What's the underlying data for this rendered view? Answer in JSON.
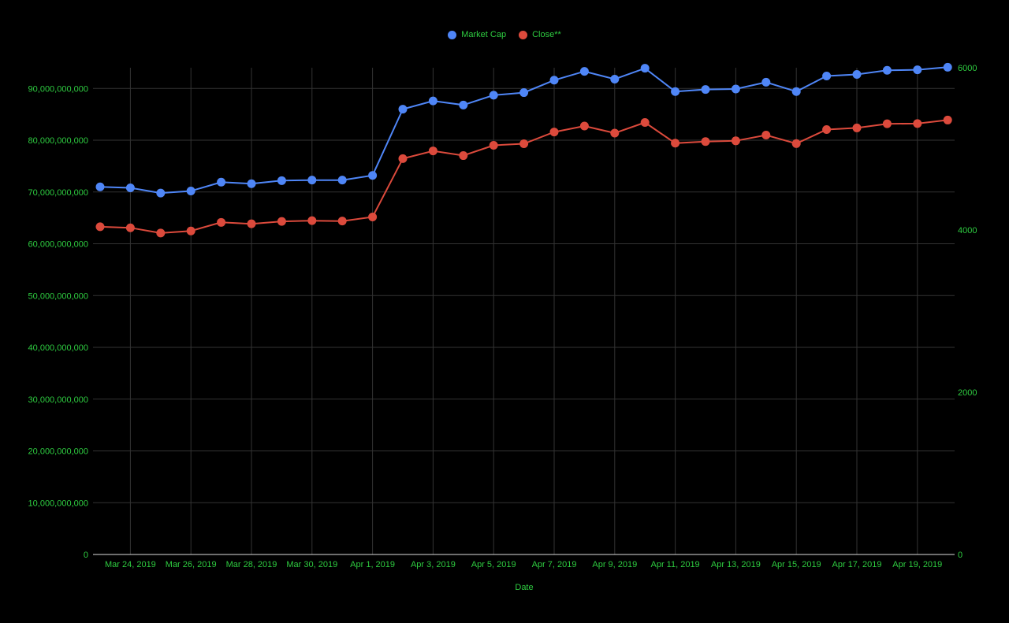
{
  "chart_data": {
    "type": "line",
    "xlabel": "Date",
    "ylabel": "",
    "ylabel_right": "",
    "grid": true,
    "legend_position": "top",
    "colors": {
      "background": "#000000",
      "text": "#2ecc40",
      "grid": "#333333",
      "market_cap": "#4f86f7",
      "close": "#dc4a3c",
      "axis_line": "#dddddd"
    },
    "x": [
      "Mar 23, 2019",
      "Mar 24, 2019",
      "Mar 25, 2019",
      "Mar 26, 2019",
      "Mar 27, 2019",
      "Mar 28, 2019",
      "Mar 29, 2019",
      "Mar 30, 2019",
      "Mar 31, 2019",
      "Apr 1, 2019",
      "Apr 2, 2019",
      "Apr 3, 2019",
      "Apr 4, 2019",
      "Apr 5, 2019",
      "Apr 6, 2019",
      "Apr 7, 2019",
      "Apr 8, 2019",
      "Apr 9, 2019",
      "Apr 10, 2019",
      "Apr 11, 2019",
      "Apr 12, 2019",
      "Apr 13, 2019",
      "Apr 14, 2019",
      "Apr 15, 2019",
      "Apr 16, 2019",
      "Apr 17, 2019",
      "Apr 18, 2019",
      "Apr 19, 2019",
      "Apr 20, 2019"
    ],
    "x_tick_labels": [
      "Mar 24, 2019",
      "Mar 26, 2019",
      "Mar 28, 2019",
      "Mar 30, 2019",
      "Apr 1, 2019",
      "Apr 3, 2019",
      "Apr 5, 2019",
      "Apr 7, 2019",
      "Apr 9, 2019",
      "Apr 11, 2019",
      "Apr 13, 2019",
      "Apr 15, 2019",
      "Apr 17, 2019",
      "Apr 19, 2019"
    ],
    "y_left": {
      "range": [
        0,
        94000000000
      ],
      "ticks": [
        0,
        10000000000,
        20000000000,
        30000000000,
        40000000000,
        50000000000,
        60000000000,
        70000000000,
        80000000000,
        90000000000
      ],
      "tick_labels": [
        "0",
        "10,000,000,000",
        "20,000,000,000",
        "30,000,000,000",
        "40,000,000,000",
        "50,000,000,000",
        "60,000,000,000",
        "70,000,000,000",
        "80,000,000,000",
        "90,000,000,000"
      ]
    },
    "y_right": {
      "range": [
        0,
        6000
      ],
      "ticks": [
        0,
        2000,
        4000,
        6000
      ],
      "tick_labels": [
        "0",
        "2000",
        "4000",
        "6000"
      ]
    },
    "series": [
      {
        "name": "Market Cap",
        "axis": "left",
        "values": [
          71000000000,
          70800000000,
          69800000000,
          70200000000,
          71900000000,
          71600000000,
          72200000000,
          72300000000,
          72300000000,
          73200000000,
          86000000000,
          87600000000,
          86800000000,
          88700000000,
          89200000000,
          91600000000,
          93300000000,
          91800000000,
          93900000000,
          89400000000,
          89800000000,
          89900000000,
          91200000000,
          89400000000,
          92400000000,
          92700000000,
          93500000000,
          93600000000,
          94100000000
        ]
      },
      {
        "name": "Close**",
        "axis": "right",
        "values": [
          4040,
          4027,
          3962,
          3988,
          4094,
          4076,
          4106,
          4115,
          4110,
          4160,
          4880,
          4975,
          4917,
          5044,
          5063,
          5208,
          5282,
          5194,
          5325,
          5070,
          5090,
          5099,
          5170,
          5065,
          5238,
          5258,
          5309,
          5312,
          5355
        ]
      }
    ]
  }
}
